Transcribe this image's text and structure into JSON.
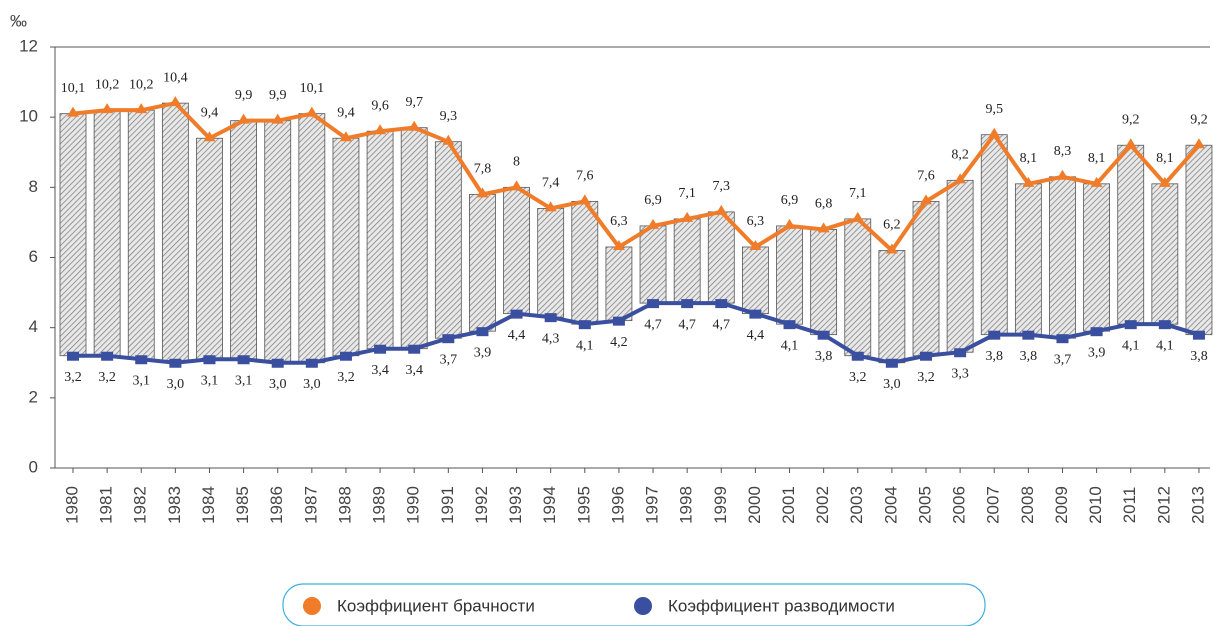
{
  "chart_data": {
    "type": "range-bar-line",
    "y_unit_label": "‰",
    "categories": [
      "1980",
      "1981",
      "1982",
      "1983",
      "1984",
      "1985",
      "1986",
      "1987",
      "1988",
      "1989",
      "1990",
      "1991",
      "1992",
      "1993",
      "1994",
      "1995",
      "1996",
      "1997",
      "1998",
      "1999",
      "2000",
      "2001",
      "2002",
      "2003",
      "2004",
      "2005",
      "2006",
      "2007",
      "2008",
      "2009",
      "2010",
      "2011",
      "2012",
      "2013"
    ],
    "series": [
      {
        "name": "Коэффициент брачности",
        "color": "#f07c2a",
        "values": [
          10.1,
          10.2,
          10.2,
          10.4,
          9.4,
          9.9,
          9.9,
          10.1,
          9.4,
          9.6,
          9.7,
          9.3,
          7.8,
          8,
          7.4,
          7.6,
          6.3,
          6.9,
          7.1,
          7.3,
          6.3,
          6.9,
          6.8,
          7.1,
          6.2,
          7.6,
          8.2,
          9.5,
          8.1,
          8.3,
          8.1,
          9.2,
          8.1,
          9.2
        ],
        "value_labels": [
          "10,1",
          "10,2",
          "10,2",
          "10,4",
          "9,4",
          "9,9",
          "9,9",
          "10,1",
          "9,4",
          "9,6",
          "9,7",
          "9,3",
          "7,8",
          "8",
          "7,4",
          "7,6",
          "6,3",
          "6,9",
          "7,1",
          "7,3",
          "6,3",
          "6,9",
          "6,8",
          "7,1",
          "6,2",
          "7,6",
          "8,2",
          "9,5",
          "8,1",
          "8,3",
          "8,1",
          "9,2",
          "8,1",
          "9,2"
        ]
      },
      {
        "name": "Коэффициент разводимости",
        "color": "#3a4fa0",
        "values": [
          3.2,
          3.2,
          3.1,
          3.0,
          3.1,
          3.1,
          3.0,
          3.0,
          3.2,
          3.4,
          3.4,
          3.7,
          3.9,
          4.4,
          4.3,
          4.1,
          4.2,
          4.7,
          4.7,
          4.7,
          4.4,
          4.1,
          3.8,
          3.2,
          3.0,
          3.2,
          3.3,
          3.8,
          3.8,
          3.7,
          3.9,
          4.1,
          4.1,
          3.8
        ],
        "value_labels": [
          "3,2",
          "3,2",
          "3,1",
          "3,0",
          "3,1",
          "3,1",
          "3,0",
          "3,0",
          "3,2",
          "3,4",
          "3,4",
          "3,7",
          "3,9",
          "4,4",
          "4,3",
          "4,1",
          "4,2",
          "4,7",
          "4,7",
          "4,7",
          "4,4",
          "4,1",
          "3,8",
          "3,2",
          "3,0",
          "3,2",
          "3,3",
          "3,8",
          "3,8",
          "3,7",
          "3,9",
          "4,1",
          "4,1",
          "3,8"
        ]
      }
    ],
    "ylim": [
      0,
      12
    ],
    "yticks": [
      0,
      2,
      4,
      6,
      8,
      10,
      12
    ],
    "grid": false,
    "legend": "bottom"
  }
}
